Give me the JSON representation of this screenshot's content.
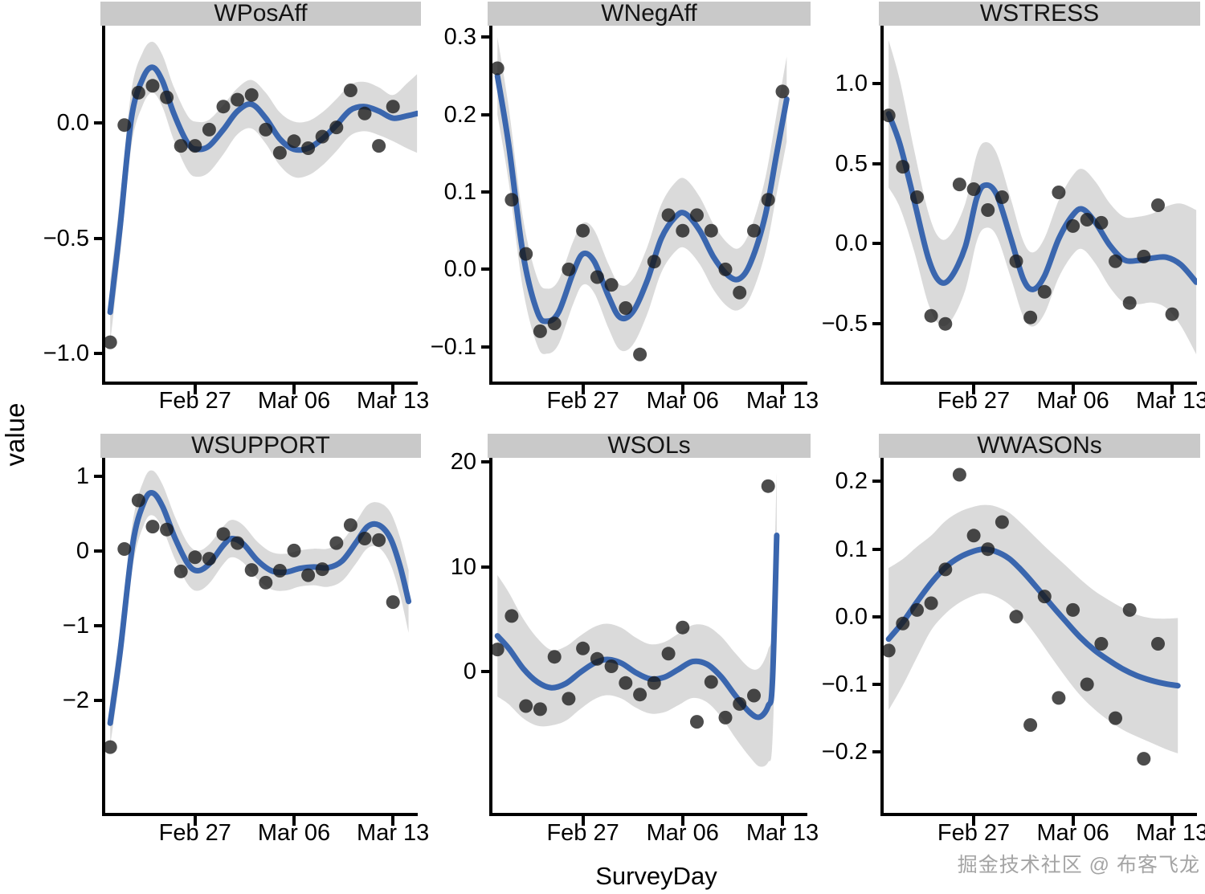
{
  "watermark": {
    "text": "掘金技术社区 @ 布客飞龙"
  },
  "chart_data": {
    "type": "scatter",
    "subtype": "faceted scatter with loess smooth and confidence ribbon",
    "title": "",
    "xlabel": "SurveyDay",
    "ylabel": "value",
    "grid": "off",
    "legend": "none",
    "x_unit": "daily observations; point index 0 = Feb 21",
    "x_domain": [
      -0.35,
      21.75
    ],
    "x_ticks": [
      {
        "v": 6,
        "label": "Feb 27"
      },
      {
        "v": 13,
        "label": "Mar 06"
      },
      {
        "v": 20,
        "label": "Mar 13"
      }
    ],
    "colors": {
      "line": "#3a66ae",
      "ribbon": "#d8d8d8",
      "point": "#1a1a1a",
      "strip_bg": "#c9c9c9",
      "axis": "#000000",
      "text": "#000000",
      "watermark": "#9b9b9b"
    },
    "facets": [
      {
        "title": "WPosAff",
        "y_domain": [
          -1.12,
          0.42
        ],
        "y_ticks": [
          {
            "v": 0,
            "label": "0.0"
          },
          {
            "v": -0.5,
            "label": "−0.5"
          },
          {
            "v": -1,
            "label": "−1.0"
          }
        ],
        "points_y": [
          -0.95,
          -0.01,
          0.13,
          0.16,
          0.11,
          -0.1,
          -0.1,
          -0.03,
          0.07,
          0.1,
          0.12,
          -0.03,
          -0.13,
          -0.08,
          -0.11,
          -0.06,
          -0.02,
          0.14,
          0.04,
          -0.1,
          0.07
        ],
        "smooth": [
          [
            0,
            -0.82
          ],
          [
            0.7,
            -0.45
          ],
          [
            1.5,
            0.02
          ],
          [
            2.3,
            0.19
          ],
          [
            3,
            0.24
          ],
          [
            3.7,
            0.18
          ],
          [
            4.5,
            0.04
          ],
          [
            5.5,
            -0.09
          ],
          [
            6.2,
            -0.115
          ],
          [
            7,
            -0.1
          ],
          [
            8,
            -0.03
          ],
          [
            9,
            0.05
          ],
          [
            10,
            0.08
          ],
          [
            11,
            0.02
          ],
          [
            12,
            -0.07
          ],
          [
            13,
            -0.115
          ],
          [
            14,
            -0.11
          ],
          [
            15,
            -0.07
          ],
          [
            16,
            -0.01
          ],
          [
            17,
            0.055
          ],
          [
            18,
            0.07
          ],
          [
            19,
            0.05
          ],
          [
            20,
            0.02
          ],
          [
            21,
            0.03
          ],
          [
            21.7,
            0.04
          ]
        ],
        "band_half": [
          [
            0,
            0.13
          ],
          [
            3,
            0.11
          ],
          [
            6,
            0.12
          ],
          [
            9,
            0.1
          ],
          [
            13,
            0.12
          ],
          [
            17,
            0.11
          ],
          [
            20,
            0.1
          ],
          [
            21.7,
            0.17
          ]
        ]
      },
      {
        "title": "WNegAff",
        "y_domain": [
          -0.145,
          0.315
        ],
        "y_ticks": [
          {
            "v": 0.3,
            "label": "0.3"
          },
          {
            "v": 0.2,
            "label": "0.2"
          },
          {
            "v": 0.1,
            "label": "0.1"
          },
          {
            "v": 0,
            "label": "0.0"
          },
          {
            "v": -0.1,
            "label": "−0.1"
          }
        ],
        "points_y": [
          0.26,
          0.09,
          0.02,
          -0.08,
          -0.07,
          0.0,
          0.05,
          -0.01,
          -0.02,
          -0.05,
          -0.11,
          0.01,
          0.07,
          0.05,
          0.07,
          0.05,
          0.0,
          -0.03,
          0.05,
          0.09,
          0.23
        ],
        "smooth": [
          [
            0,
            0.25
          ],
          [
            0.8,
            0.16
          ],
          [
            1.8,
            0.02
          ],
          [
            2.8,
            -0.055
          ],
          [
            3.5,
            -0.067
          ],
          [
            4.3,
            -0.055
          ],
          [
            5.3,
            -0.005
          ],
          [
            6,
            0.02
          ],
          [
            6.8,
            0.01
          ],
          [
            7.8,
            -0.035
          ],
          [
            8.6,
            -0.062
          ],
          [
            9.5,
            -0.055
          ],
          [
            10.5,
            -0.015
          ],
          [
            11.5,
            0.04
          ],
          [
            12.5,
            0.068
          ],
          [
            13.2,
            0.072
          ],
          [
            14.2,
            0.05
          ],
          [
            15.2,
            0.015
          ],
          [
            16.2,
            -0.008
          ],
          [
            17,
            -0.012
          ],
          [
            17.8,
            0.01
          ],
          [
            18.8,
            0.07
          ],
          [
            19.6,
            0.15
          ],
          [
            20.3,
            0.22
          ]
        ],
        "band_half": [
          [
            0,
            0.05
          ],
          [
            3.5,
            0.042
          ],
          [
            6,
            0.04
          ],
          [
            8.5,
            0.042
          ],
          [
            13,
            0.045
          ],
          [
            17,
            0.04
          ],
          [
            20.3,
            0.055
          ]
        ]
      },
      {
        "title": "WSTRESS",
        "y_domain": [
          -0.86,
          1.36
        ],
        "y_ticks": [
          {
            "v": 1,
            "label": "1.0"
          },
          {
            "v": 0.5,
            "label": "0.5"
          },
          {
            "v": 0,
            "label": "0.0"
          },
          {
            "v": -0.5,
            "label": "−0.5"
          }
        ],
        "points_y": [
          0.8,
          0.48,
          0.29,
          -0.45,
          -0.5,
          0.37,
          0.34,
          0.21,
          0.29,
          -0.11,
          -0.46,
          -0.3,
          0.32,
          0.11,
          0.15,
          0.13,
          -0.11,
          -0.37,
          -0.08,
          0.24,
          -0.44
        ],
        "smooth": [
          [
            0,
            0.81
          ],
          [
            0.8,
            0.62
          ],
          [
            1.8,
            0.27
          ],
          [
            2.8,
            -0.09
          ],
          [
            3.6,
            -0.235
          ],
          [
            4.4,
            -0.21
          ],
          [
            5.4,
            -0.02
          ],
          [
            6.2,
            0.28
          ],
          [
            6.8,
            0.365
          ],
          [
            7.6,
            0.31
          ],
          [
            8.6,
            0.04
          ],
          [
            9.5,
            -0.22
          ],
          [
            10.2,
            -0.285
          ],
          [
            11,
            -0.2
          ],
          [
            12,
            0.03
          ],
          [
            13,
            0.18
          ],
          [
            13.7,
            0.215
          ],
          [
            14.6,
            0.13
          ],
          [
            15.6,
            -0.01
          ],
          [
            16.6,
            -0.1
          ],
          [
            17.6,
            -0.105
          ],
          [
            18.6,
            -0.09
          ],
          [
            19.6,
            -0.085
          ],
          [
            20.6,
            -0.13
          ],
          [
            21.7,
            -0.24
          ]
        ],
        "band_half": [
          [
            0,
            0.46
          ],
          [
            2,
            0.3
          ],
          [
            3.6,
            0.27
          ],
          [
            6.6,
            0.27
          ],
          [
            10,
            0.23
          ],
          [
            13.6,
            0.25
          ],
          [
            17,
            0.27
          ],
          [
            19,
            0.28
          ],
          [
            21.7,
            0.45
          ]
        ]
      },
      {
        "title": "WSUPPORT",
        "y_domain": [
          -3.5,
          1.25
        ],
        "y_ticks": [
          {
            "v": 1,
            "label": "1"
          },
          {
            "v": 0,
            "label": "0"
          },
          {
            "v": -1,
            "label": "−1"
          },
          {
            "v": -2,
            "label": "−2"
          }
        ],
        "points_y": [
          -2.62,
          0.03,
          0.68,
          0.33,
          0.29,
          -0.27,
          -0.08,
          -0.1,
          0.23,
          0.11,
          -0.25,
          -0.42,
          -0.26,
          0.01,
          -0.32,
          -0.24,
          0.11,
          0.35,
          0.17,
          0.15,
          -0.68
        ],
        "smooth": [
          [
            0,
            -2.3
          ],
          [
            0.7,
            -1.35
          ],
          [
            1.6,
            0.1
          ],
          [
            2.4,
            0.66
          ],
          [
            3,
            0.78
          ],
          [
            3.7,
            0.6
          ],
          [
            4.6,
            0.17
          ],
          [
            5.5,
            -0.17
          ],
          [
            6.2,
            -0.26
          ],
          [
            7,
            -0.17
          ],
          [
            8,
            0.08
          ],
          [
            8.6,
            0.17
          ],
          [
            9.4,
            0.1
          ],
          [
            10.4,
            -0.12
          ],
          [
            11.4,
            -0.26
          ],
          [
            12.4,
            -0.28
          ],
          [
            13.4,
            -0.23
          ],
          [
            14.4,
            -0.21
          ],
          [
            15.4,
            -0.22
          ],
          [
            16.4,
            -0.13
          ],
          [
            17.4,
            0.12
          ],
          [
            18.2,
            0.33
          ],
          [
            19,
            0.35
          ],
          [
            19.8,
            0.18
          ],
          [
            20.5,
            -0.2
          ],
          [
            21.1,
            -0.67
          ]
        ],
        "band_half": [
          [
            0,
            0.3
          ],
          [
            2.9,
            0.3
          ],
          [
            6,
            0.27
          ],
          [
            8.3,
            0.25
          ],
          [
            11.5,
            0.25
          ],
          [
            14,
            0.24
          ],
          [
            17.5,
            0.28
          ],
          [
            19,
            0.3
          ],
          [
            21.1,
            0.42
          ]
        ]
      },
      {
        "title": "WSOLs",
        "y_domain": [
          -13.5,
          20.4
        ],
        "y_ticks": [
          {
            "v": 20,
            "label": "20"
          },
          {
            "v": 10,
            "label": "10"
          },
          {
            "v": 0,
            "label": "0"
          }
        ],
        "points_y": [
          2.1,
          5.3,
          -3.3,
          -3.6,
          1.4,
          -2.6,
          2.2,
          1.2,
          0.5,
          -1.1,
          -2.2,
          -1.1,
          1.7,
          4.2,
          -4.8,
          -1.0,
          -4.4,
          -3.1,
          -2.3,
          17.7
        ],
        "smooth": [
          [
            0,
            3.4
          ],
          [
            0.8,
            2.2
          ],
          [
            1.8,
            0.3
          ],
          [
            2.8,
            -1.0
          ],
          [
            3.8,
            -1.55
          ],
          [
            4.8,
            -1.15
          ],
          [
            5.8,
            -0.1
          ],
          [
            6.8,
            0.8
          ],
          [
            7.7,
            1.15
          ],
          [
            8.7,
            0.8
          ],
          [
            9.7,
            -0.1
          ],
          [
            10.7,
            -0.7
          ],
          [
            11.7,
            -0.55
          ],
          [
            12.7,
            0.2
          ],
          [
            13.7,
            0.95
          ],
          [
            14.7,
            0.7
          ],
          [
            15.7,
            -0.5
          ],
          [
            16.7,
            -2.3
          ],
          [
            17.7,
            -3.9
          ],
          [
            18.4,
            -4.35
          ],
          [
            19,
            -3.3
          ],
          [
            19.3,
            -1.0
          ],
          [
            19.6,
            13.0
          ]
        ],
        "band_half": [
          [
            0,
            5.8
          ],
          [
            3.8,
            3.6
          ],
          [
            8,
            3.4
          ],
          [
            11,
            3.3
          ],
          [
            14,
            3.5
          ],
          [
            18,
            4.3
          ],
          [
            19.6,
            6.0
          ]
        ]
      },
      {
        "title": "WWASONs",
        "y_domain": [
          -0.29,
          0.235
        ],
        "y_ticks": [
          {
            "v": 0.2,
            "label": "0.2"
          },
          {
            "v": 0.1,
            "label": "0.1"
          },
          {
            "v": 0,
            "label": "0.0"
          },
          {
            "v": -0.1,
            "label": "−0.1"
          },
          {
            "v": -0.2,
            "label": "−0.2"
          }
        ],
        "points_y": [
          -0.05,
          -0.01,
          0.01,
          0.02,
          0.07,
          0.21,
          0.12,
          0.1,
          0.14,
          0.0,
          -0.16,
          0.03,
          -0.12,
          0.01,
          -0.1,
          -0.04,
          -0.15,
          0.01,
          -0.21,
          -0.04
        ],
        "smooth": [
          [
            0,
            -0.033
          ],
          [
            1,
            -0.008
          ],
          [
            2,
            0.022
          ],
          [
            3,
            0.05
          ],
          [
            4,
            0.073
          ],
          [
            5,
            0.088
          ],
          [
            6,
            0.097
          ],
          [
            6.7,
            0.1
          ],
          [
            7.5,
            0.097
          ],
          [
            8.5,
            0.086
          ],
          [
            9.5,
            0.066
          ],
          [
            10.5,
            0.042
          ],
          [
            11.5,
            0.017
          ],
          [
            12.5,
            -0.007
          ],
          [
            13.5,
            -0.03
          ],
          [
            14.5,
            -0.049
          ],
          [
            15.5,
            -0.064
          ],
          [
            16.5,
            -0.077
          ],
          [
            17.5,
            -0.087
          ],
          [
            18.5,
            -0.094
          ],
          [
            19.5,
            -0.099
          ],
          [
            20.4,
            -0.102
          ]
        ],
        "band_half": [
          [
            0,
            0.105
          ],
          [
            3,
            0.07
          ],
          [
            6.5,
            0.065
          ],
          [
            10,
            0.07
          ],
          [
            13,
            0.085
          ],
          [
            16,
            0.09
          ],
          [
            18,
            0.09
          ],
          [
            20.4,
            0.1
          ]
        ]
      }
    ]
  }
}
